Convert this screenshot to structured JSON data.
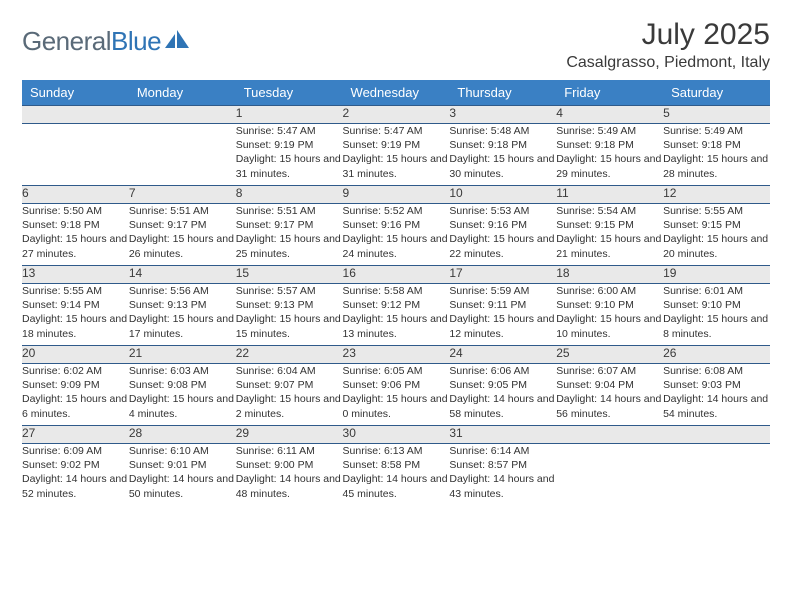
{
  "brand": {
    "part1": "General",
    "part2": "Blue"
  },
  "title": "July 2025",
  "location": "Casalgrasso, Piedmont, Italy",
  "colors": {
    "header_bg": "#3a80c4",
    "header_fg": "#ffffff",
    "daynum_bg": "#e9e9e9",
    "rule": "#2f5a8a",
    "logo_gray": "#5a6a78",
    "logo_blue": "#2f74b5",
    "text": "#323232",
    "page_bg": "#ffffff"
  },
  "day_headers": [
    "Sunday",
    "Monday",
    "Tuesday",
    "Wednesday",
    "Thursday",
    "Friday",
    "Saturday"
  ],
  "weeks": [
    [
      null,
      null,
      {
        "n": "1",
        "sr": "5:47 AM",
        "ss": "9:19 PM",
        "dl": "15 hours and 31 minutes."
      },
      {
        "n": "2",
        "sr": "5:47 AM",
        "ss": "9:19 PM",
        "dl": "15 hours and 31 minutes."
      },
      {
        "n": "3",
        "sr": "5:48 AM",
        "ss": "9:18 PM",
        "dl": "15 hours and 30 minutes."
      },
      {
        "n": "4",
        "sr": "5:49 AM",
        "ss": "9:18 PM",
        "dl": "15 hours and 29 minutes."
      },
      {
        "n": "5",
        "sr": "5:49 AM",
        "ss": "9:18 PM",
        "dl": "15 hours and 28 minutes."
      }
    ],
    [
      {
        "n": "6",
        "sr": "5:50 AM",
        "ss": "9:18 PM",
        "dl": "15 hours and 27 minutes."
      },
      {
        "n": "7",
        "sr": "5:51 AM",
        "ss": "9:17 PM",
        "dl": "15 hours and 26 minutes."
      },
      {
        "n": "8",
        "sr": "5:51 AM",
        "ss": "9:17 PM",
        "dl": "15 hours and 25 minutes."
      },
      {
        "n": "9",
        "sr": "5:52 AM",
        "ss": "9:16 PM",
        "dl": "15 hours and 24 minutes."
      },
      {
        "n": "10",
        "sr": "5:53 AM",
        "ss": "9:16 PM",
        "dl": "15 hours and 22 minutes."
      },
      {
        "n": "11",
        "sr": "5:54 AM",
        "ss": "9:15 PM",
        "dl": "15 hours and 21 minutes."
      },
      {
        "n": "12",
        "sr": "5:55 AM",
        "ss": "9:15 PM",
        "dl": "15 hours and 20 minutes."
      }
    ],
    [
      {
        "n": "13",
        "sr": "5:55 AM",
        "ss": "9:14 PM",
        "dl": "15 hours and 18 minutes."
      },
      {
        "n": "14",
        "sr": "5:56 AM",
        "ss": "9:13 PM",
        "dl": "15 hours and 17 minutes."
      },
      {
        "n": "15",
        "sr": "5:57 AM",
        "ss": "9:13 PM",
        "dl": "15 hours and 15 minutes."
      },
      {
        "n": "16",
        "sr": "5:58 AM",
        "ss": "9:12 PM",
        "dl": "15 hours and 13 minutes."
      },
      {
        "n": "17",
        "sr": "5:59 AM",
        "ss": "9:11 PM",
        "dl": "15 hours and 12 minutes."
      },
      {
        "n": "18",
        "sr": "6:00 AM",
        "ss": "9:10 PM",
        "dl": "15 hours and 10 minutes."
      },
      {
        "n": "19",
        "sr": "6:01 AM",
        "ss": "9:10 PM",
        "dl": "15 hours and 8 minutes."
      }
    ],
    [
      {
        "n": "20",
        "sr": "6:02 AM",
        "ss": "9:09 PM",
        "dl": "15 hours and 6 minutes."
      },
      {
        "n": "21",
        "sr": "6:03 AM",
        "ss": "9:08 PM",
        "dl": "15 hours and 4 minutes."
      },
      {
        "n": "22",
        "sr": "6:04 AM",
        "ss": "9:07 PM",
        "dl": "15 hours and 2 minutes."
      },
      {
        "n": "23",
        "sr": "6:05 AM",
        "ss": "9:06 PM",
        "dl": "15 hours and 0 minutes."
      },
      {
        "n": "24",
        "sr": "6:06 AM",
        "ss": "9:05 PM",
        "dl": "14 hours and 58 minutes."
      },
      {
        "n": "25",
        "sr": "6:07 AM",
        "ss": "9:04 PM",
        "dl": "14 hours and 56 minutes."
      },
      {
        "n": "26",
        "sr": "6:08 AM",
        "ss": "9:03 PM",
        "dl": "14 hours and 54 minutes."
      }
    ],
    [
      {
        "n": "27",
        "sr": "6:09 AM",
        "ss": "9:02 PM",
        "dl": "14 hours and 52 minutes."
      },
      {
        "n": "28",
        "sr": "6:10 AM",
        "ss": "9:01 PM",
        "dl": "14 hours and 50 minutes."
      },
      {
        "n": "29",
        "sr": "6:11 AM",
        "ss": "9:00 PM",
        "dl": "14 hours and 48 minutes."
      },
      {
        "n": "30",
        "sr": "6:13 AM",
        "ss": "8:58 PM",
        "dl": "14 hours and 45 minutes."
      },
      {
        "n": "31",
        "sr": "6:14 AM",
        "ss": "8:57 PM",
        "dl": "14 hours and 43 minutes."
      },
      null,
      null
    ]
  ],
  "labels": {
    "sunrise": "Sunrise: ",
    "sunset": "Sunset: ",
    "daylight": "Daylight: "
  }
}
